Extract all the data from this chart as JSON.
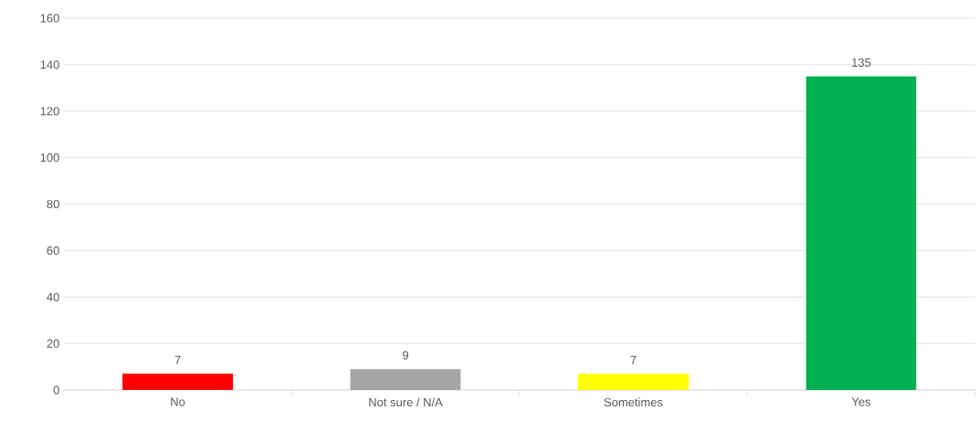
{
  "chart_data": {
    "type": "bar",
    "categories": [
      "No",
      "Not sure / N/A",
      "Sometimes",
      "Yes"
    ],
    "values": [
      7,
      9,
      7,
      135
    ],
    "colors": [
      "#ff0000",
      "#a5a5a5",
      "#ffff00",
      "#00b050"
    ],
    "ylim": [
      0,
      160
    ],
    "yticks": [
      0,
      20,
      40,
      60,
      80,
      100,
      120,
      140,
      160
    ],
    "grid": "y",
    "data_labels": true
  }
}
